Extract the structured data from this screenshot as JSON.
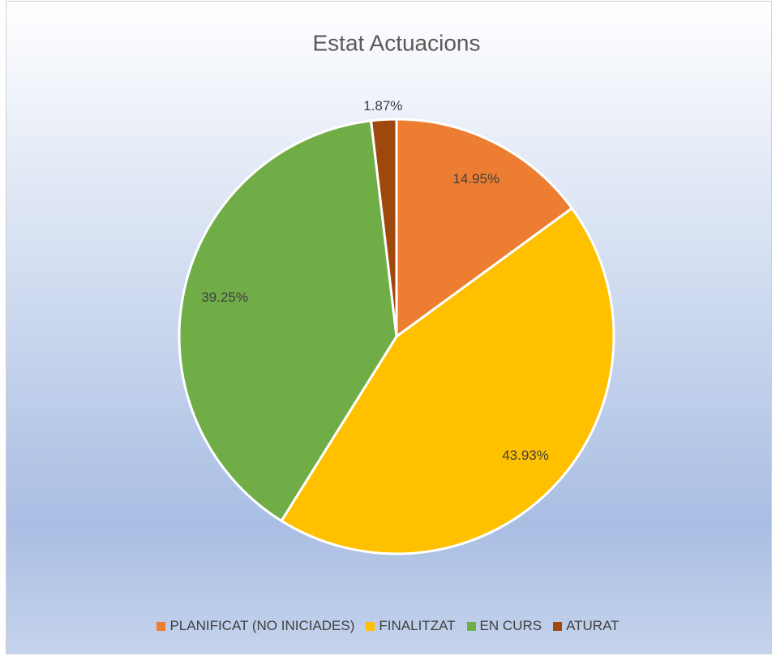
{
  "chart_data": {
    "type": "pie",
    "title": "Estat Actuacions",
    "categories": [
      "PLANIFICAT (NO INICIADES)",
      "FINALITZAT",
      "EN CURS",
      "ATURAT"
    ],
    "values": [
      14.95,
      43.93,
      39.25,
      1.87
    ],
    "value_labels": [
      "14.95%",
      "43.93%",
      "39.25%",
      "1.87%"
    ],
    "colors": [
      "#ed7d31",
      "#ffc000",
      "#70ad47",
      "#9e480e"
    ],
    "legend": "bottom"
  }
}
